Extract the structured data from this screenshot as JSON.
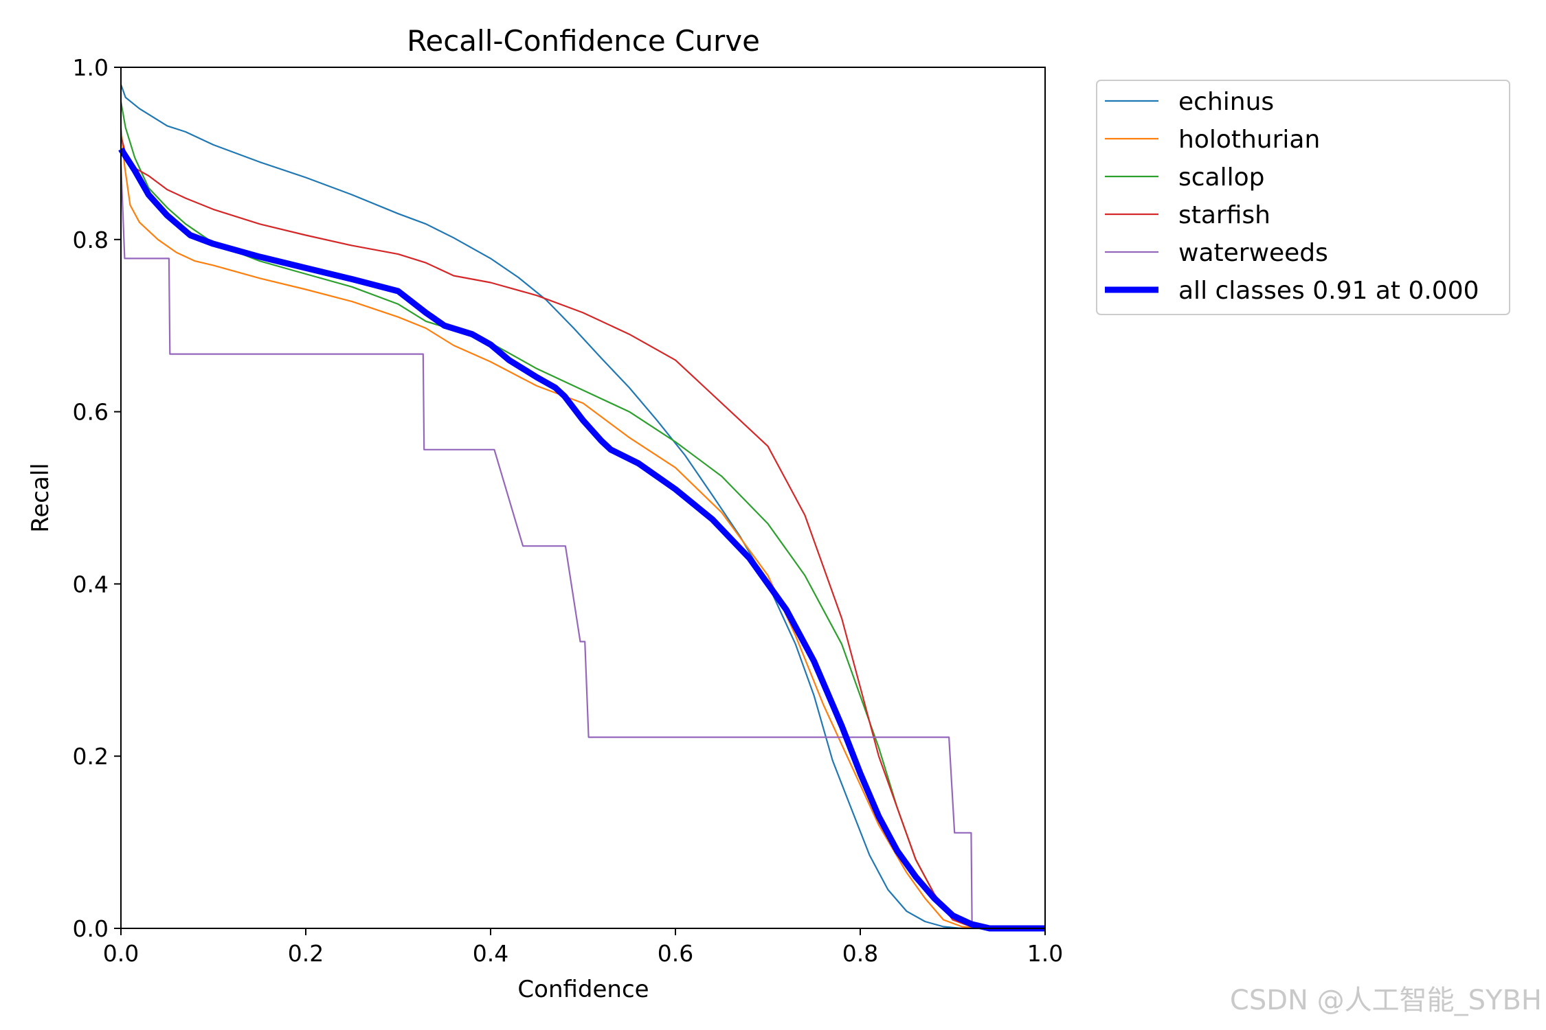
{
  "chart_data": {
    "type": "line",
    "title": "Recall-Confidence Curve",
    "xlabel": "Confidence",
    "ylabel": "Recall",
    "xlim": [
      0,
      1
    ],
    "ylim": [
      0,
      1
    ],
    "xticks": [
      "0.0",
      "0.2",
      "0.4",
      "0.6",
      "0.8",
      "1.0"
    ],
    "yticks": [
      "0.0",
      "0.2",
      "0.4",
      "0.6",
      "0.8",
      "1.0"
    ],
    "grid": false,
    "legend_position": "outside-top-right",
    "series": [
      {
        "name": "echinus",
        "color": "#1f77b4",
        "width": "thin",
        "points": [
          [
            0,
            0.98
          ],
          [
            0.005,
            0.965
          ],
          [
            0.02,
            0.952
          ],
          [
            0.05,
            0.932
          ],
          [
            0.07,
            0.925
          ],
          [
            0.1,
            0.91
          ],
          [
            0.15,
            0.89
          ],
          [
            0.2,
            0.872
          ],
          [
            0.25,
            0.852
          ],
          [
            0.3,
            0.83
          ],
          [
            0.33,
            0.818
          ],
          [
            0.36,
            0.802
          ],
          [
            0.4,
            0.778
          ],
          [
            0.43,
            0.756
          ],
          [
            0.46,
            0.73
          ],
          [
            0.49,
            0.697
          ],
          [
            0.52,
            0.662
          ],
          [
            0.55,
            0.628
          ],
          [
            0.58,
            0.59
          ],
          [
            0.61,
            0.55
          ],
          [
            0.64,
            0.503
          ],
          [
            0.67,
            0.455
          ],
          [
            0.7,
            0.4
          ],
          [
            0.73,
            0.33
          ],
          [
            0.75,
            0.27
          ],
          [
            0.77,
            0.195
          ],
          [
            0.79,
            0.14
          ],
          [
            0.81,
            0.085
          ],
          [
            0.83,
            0.045
          ],
          [
            0.85,
            0.02
          ],
          [
            0.87,
            0.008
          ],
          [
            0.89,
            0.002
          ],
          [
            0.91,
            0
          ],
          [
            1,
            0
          ]
        ]
      },
      {
        "name": "holothurian",
        "color": "#ff7f0e",
        "width": "thin",
        "points": [
          [
            0,
            0.93
          ],
          [
            0.004,
            0.885
          ],
          [
            0.01,
            0.84
          ],
          [
            0.02,
            0.82
          ],
          [
            0.04,
            0.8
          ],
          [
            0.06,
            0.785
          ],
          [
            0.08,
            0.775
          ],
          [
            0.1,
            0.77
          ],
          [
            0.15,
            0.755
          ],
          [
            0.2,
            0.742
          ],
          [
            0.25,
            0.728
          ],
          [
            0.3,
            0.71
          ],
          [
            0.33,
            0.697
          ],
          [
            0.36,
            0.677
          ],
          [
            0.4,
            0.658
          ],
          [
            0.45,
            0.63
          ],
          [
            0.5,
            0.61
          ],
          [
            0.55,
            0.57
          ],
          [
            0.6,
            0.535
          ],
          [
            0.65,
            0.483
          ],
          [
            0.7,
            0.41
          ],
          [
            0.73,
            0.34
          ],
          [
            0.76,
            0.26
          ],
          [
            0.79,
            0.19
          ],
          [
            0.82,
            0.12
          ],
          [
            0.85,
            0.065
          ],
          [
            0.87,
            0.035
          ],
          [
            0.89,
            0.01
          ],
          [
            0.91,
            0.002
          ],
          [
            0.93,
            0
          ],
          [
            1,
            0
          ]
        ]
      },
      {
        "name": "scallop",
        "color": "#2ca02c",
        "width": "thin",
        "points": [
          [
            0,
            0.96
          ],
          [
            0.005,
            0.93
          ],
          [
            0.015,
            0.895
          ],
          [
            0.03,
            0.86
          ],
          [
            0.05,
            0.837
          ],
          [
            0.07,
            0.818
          ],
          [
            0.1,
            0.796
          ],
          [
            0.15,
            0.775
          ],
          [
            0.2,
            0.76
          ],
          [
            0.25,
            0.745
          ],
          [
            0.3,
            0.725
          ],
          [
            0.33,
            0.705
          ],
          [
            0.36,
            0.695
          ],
          [
            0.4,
            0.68
          ],
          [
            0.45,
            0.65
          ],
          [
            0.5,
            0.625
          ],
          [
            0.55,
            0.6
          ],
          [
            0.6,
            0.565
          ],
          [
            0.65,
            0.525
          ],
          [
            0.7,
            0.47
          ],
          [
            0.74,
            0.41
          ],
          [
            0.78,
            0.33
          ],
          [
            0.8,
            0.27
          ],
          [
            0.82,
            0.21
          ],
          [
            0.84,
            0.14
          ],
          [
            0.86,
            0.08
          ],
          [
            0.88,
            0.04
          ],
          [
            0.9,
            0.012
          ],
          [
            0.92,
            0.002
          ],
          [
            0.94,
            0
          ],
          [
            1,
            0
          ]
        ]
      },
      {
        "name": "starfish",
        "color": "#d62728",
        "width": "thin",
        "points": [
          [
            0,
            0.92
          ],
          [
            0.005,
            0.9
          ],
          [
            0.015,
            0.883
          ],
          [
            0.03,
            0.874
          ],
          [
            0.05,
            0.858
          ],
          [
            0.07,
            0.848
          ],
          [
            0.1,
            0.835
          ],
          [
            0.15,
            0.818
          ],
          [
            0.2,
            0.805
          ],
          [
            0.25,
            0.793
          ],
          [
            0.3,
            0.783
          ],
          [
            0.33,
            0.773
          ],
          [
            0.36,
            0.758
          ],
          [
            0.4,
            0.75
          ],
          [
            0.45,
            0.735
          ],
          [
            0.5,
            0.715
          ],
          [
            0.55,
            0.69
          ],
          [
            0.6,
            0.66
          ],
          [
            0.63,
            0.63
          ],
          [
            0.66,
            0.6
          ],
          [
            0.7,
            0.56
          ],
          [
            0.72,
            0.52
          ],
          [
            0.74,
            0.48
          ],
          [
            0.76,
            0.42
          ],
          [
            0.78,
            0.36
          ],
          [
            0.8,
            0.28
          ],
          [
            0.82,
            0.2
          ],
          [
            0.84,
            0.14
          ],
          [
            0.86,
            0.08
          ],
          [
            0.88,
            0.04
          ],
          [
            0.9,
            0.01
          ],
          [
            0.92,
            0.002
          ],
          [
            0.94,
            0
          ],
          [
            1,
            0
          ]
        ]
      },
      {
        "name": "waterweeds",
        "color": "#9467bd",
        "width": "thin",
        "points": [
          [
            0,
            0.889
          ],
          [
            0.004,
            0.778
          ],
          [
            0.052,
            0.778
          ],
          [
            0.053,
            0.667
          ],
          [
            0.327,
            0.667
          ],
          [
            0.328,
            0.556
          ],
          [
            0.404,
            0.556
          ],
          [
            0.435,
            0.444
          ],
          [
            0.481,
            0.444
          ],
          [
            0.497,
            0.333
          ],
          [
            0.502,
            0.333
          ],
          [
            0.506,
            0.222
          ],
          [
            0.896,
            0.222
          ],
          [
            0.902,
            0.111
          ],
          [
            0.92,
            0.111
          ],
          [
            0.921,
            0
          ],
          [
            1,
            0
          ]
        ]
      },
      {
        "name": "all classes 0.91 at 0.000",
        "color": "#0000ff",
        "width": "thick",
        "points": [
          [
            0,
            0.905
          ],
          [
            0.015,
            0.88
          ],
          [
            0.03,
            0.852
          ],
          [
            0.05,
            0.828
          ],
          [
            0.075,
            0.805
          ],
          [
            0.1,
            0.795
          ],
          [
            0.15,
            0.78
          ],
          [
            0.2,
            0.767
          ],
          [
            0.25,
            0.754
          ],
          [
            0.3,
            0.74
          ],
          [
            0.33,
            0.715
          ],
          [
            0.35,
            0.7
          ],
          [
            0.38,
            0.69
          ],
          [
            0.4,
            0.678
          ],
          [
            0.42,
            0.66
          ],
          [
            0.45,
            0.64
          ],
          [
            0.47,
            0.628
          ],
          [
            0.48,
            0.618
          ],
          [
            0.5,
            0.59
          ],
          [
            0.52,
            0.566
          ],
          [
            0.53,
            0.556
          ],
          [
            0.56,
            0.54
          ],
          [
            0.6,
            0.51
          ],
          [
            0.64,
            0.475
          ],
          [
            0.68,
            0.43
          ],
          [
            0.72,
            0.37
          ],
          [
            0.75,
            0.31
          ],
          [
            0.78,
            0.235
          ],
          [
            0.8,
            0.18
          ],
          [
            0.82,
            0.13
          ],
          [
            0.84,
            0.09
          ],
          [
            0.86,
            0.06
          ],
          [
            0.88,
            0.035
          ],
          [
            0.9,
            0.015
          ],
          [
            0.92,
            0.005
          ],
          [
            0.94,
            0
          ],
          [
            1,
            0
          ]
        ]
      }
    ]
  },
  "watermark": "CSDN @人工智能_SYBH"
}
